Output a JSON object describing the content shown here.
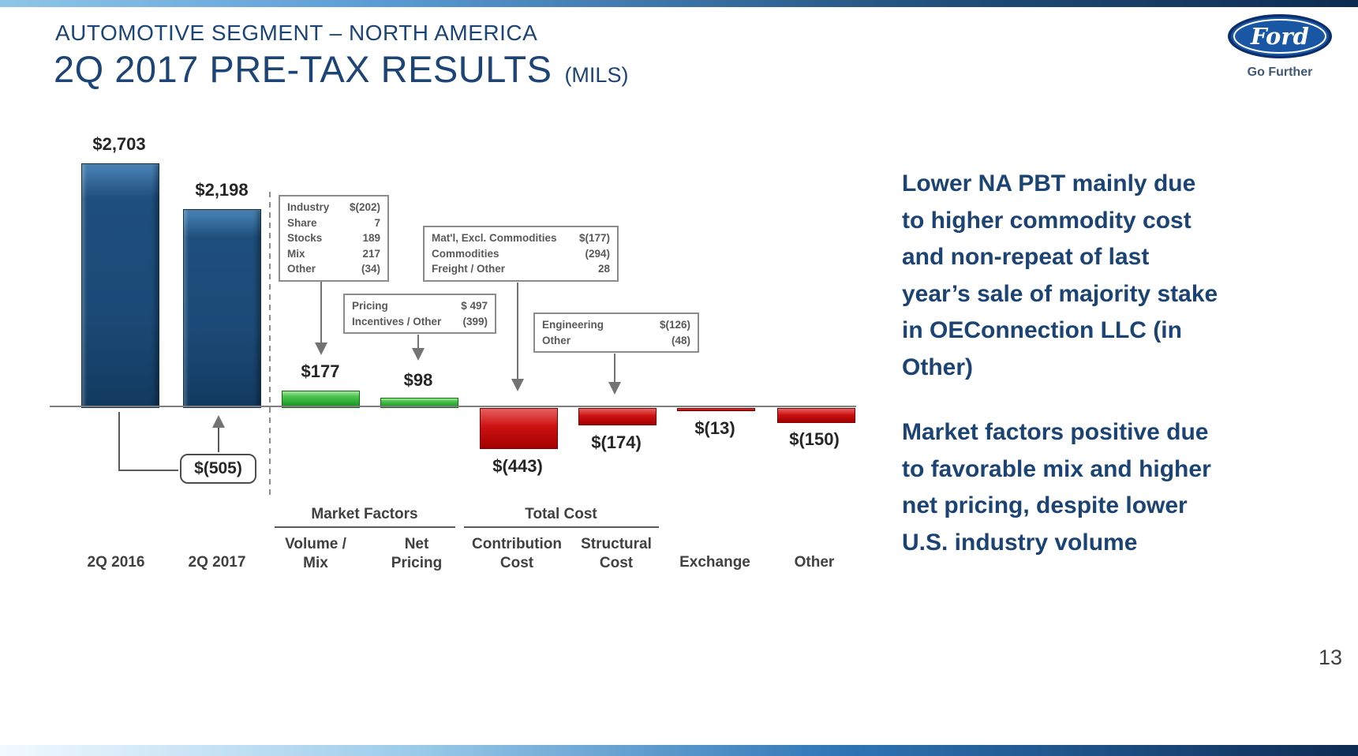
{
  "slide": {
    "kicker": "AUTOMOTIVE SEGMENT – NORTH AMERICA",
    "title": "2Q 2017 PRE-TAX RESULTS",
    "title_suffix": "(MILS)",
    "page_number": "13"
  },
  "logo": {
    "brand": "Ford",
    "tagline": "Go Further"
  },
  "commentary": [
    "Lower NA PBT mainly due to higher commodity cost and non-repeat of last year’s sale of majority stake in OEConnection LLC (in Other)",
    "Market factors positive due to favorable mix and higher net pricing, despite lower U.S. industry volume"
  ],
  "colors": {
    "heading_blue": "#1d4477",
    "bar_blue": "#1c4a77",
    "bar_green": "#2faf36",
    "bar_red": "#c00000",
    "annotation_gray": "#595959"
  },
  "chart_data": {
    "type": "bar",
    "subtype": "waterfall",
    "title": "2Q 2017 PRE-TAX RESULTS (MILS)",
    "categories": [
      "2Q 2016",
      "2Q 2017",
      "Volume / Mix",
      "Net Pricing",
      "Contribution Cost",
      "Structural Cost",
      "Exchange",
      "Other"
    ],
    "values": [
      2703,
      2198,
      177,
      98,
      -443,
      -174,
      -13,
      -150
    ],
    "labels": [
      "$2,703",
      "$2,198",
      "$177",
      "$98",
      "$(443)",
      "$(174)",
      "$(13)",
      "$(150)"
    ],
    "tick_labels": [
      "2Q 2016",
      "2Q 2017",
      "Volume /\nMix",
      "Net\nPricing",
      "Contribution\nCost",
      "Structural\nCost",
      "Exchange",
      "Other"
    ],
    "bar_colors": [
      "blue",
      "blue",
      "green",
      "green",
      "red",
      "red",
      "red",
      "red"
    ],
    "delta_label": "$(505)",
    "group_headers": [
      {
        "label": "Market Factors",
        "spans": [
          "Volume / Mix",
          "Net Pricing"
        ]
      },
      {
        "label": "Total Cost",
        "spans": [
          "Contribution Cost",
          "Structural Cost"
        ]
      }
    ],
    "callouts": [
      {
        "target": "Volume / Mix",
        "rows": [
          [
            "Industry",
            "$(202)"
          ],
          [
            "Share",
            "7"
          ],
          [
            "Stocks",
            "189"
          ],
          [
            "Mix",
            "217"
          ],
          [
            "Other",
            "(34)"
          ]
        ]
      },
      {
        "target": "Net Pricing",
        "rows": [
          [
            "Pricing",
            "$ 497"
          ],
          [
            "Incentives / Other",
            "(399)"
          ]
        ]
      },
      {
        "target": "Contribution Cost",
        "rows": [
          [
            "Mat'l, Excl. Commodities",
            "$(177)"
          ],
          [
            "Commodities",
            "(294)"
          ],
          [
            "Freight / Other",
            "28"
          ]
        ]
      },
      {
        "target": "Structural Cost",
        "rows": [
          [
            "Engineering",
            "$(126)"
          ],
          [
            "Other",
            "(48)"
          ]
        ]
      }
    ],
    "ylim": [
      -600,
      2800
    ],
    "grid": false,
    "legend": "none"
  }
}
